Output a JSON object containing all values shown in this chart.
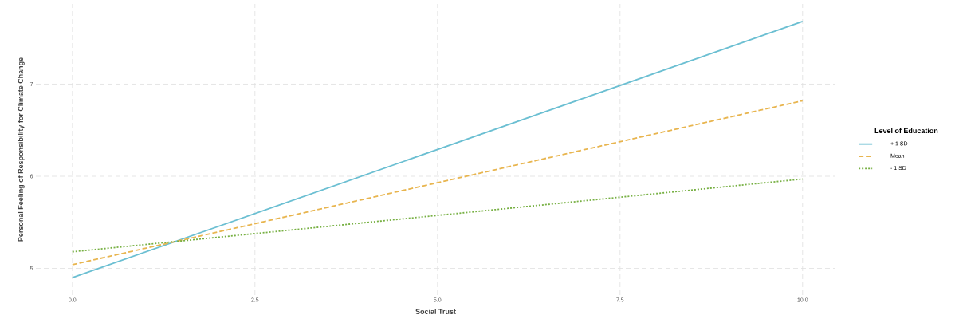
{
  "chart_data": {
    "type": "line",
    "xlabel": "Social Trust",
    "ylabel": "Personal Feeling of Responsibility for Climate Change",
    "legend_title": "Level of Education",
    "x": [
      0,
      10
    ],
    "series": [
      {
        "name": "+ 1 SD",
        "color": "#6bbfd2",
        "line_style": "solid",
        "values": [
          4.9,
          7.68
        ]
      },
      {
        "name": "Mean",
        "color": "#e8b54f",
        "line_style": "dashed",
        "values": [
          5.04,
          6.82
        ]
      },
      {
        "name": "- 1 SD",
        "color": "#77b043",
        "line_style": "dotted",
        "values": [
          5.18,
          5.97
        ]
      }
    ],
    "xlim": [
      -0.5,
      10.45
    ],
    "ylim": [
      4.71,
      7.87
    ],
    "xticks": [
      {
        "value": 0,
        "label": "0.0"
      },
      {
        "value": 2.5,
        "label": "2.5"
      },
      {
        "value": 5,
        "label": "5.0"
      },
      {
        "value": 7.5,
        "label": "7.5"
      },
      {
        "value": 10,
        "label": "10.0"
      }
    ],
    "yticks": [
      5,
      6,
      7
    ],
    "grid": true,
    "legend": "right",
    "marker": "none"
  }
}
